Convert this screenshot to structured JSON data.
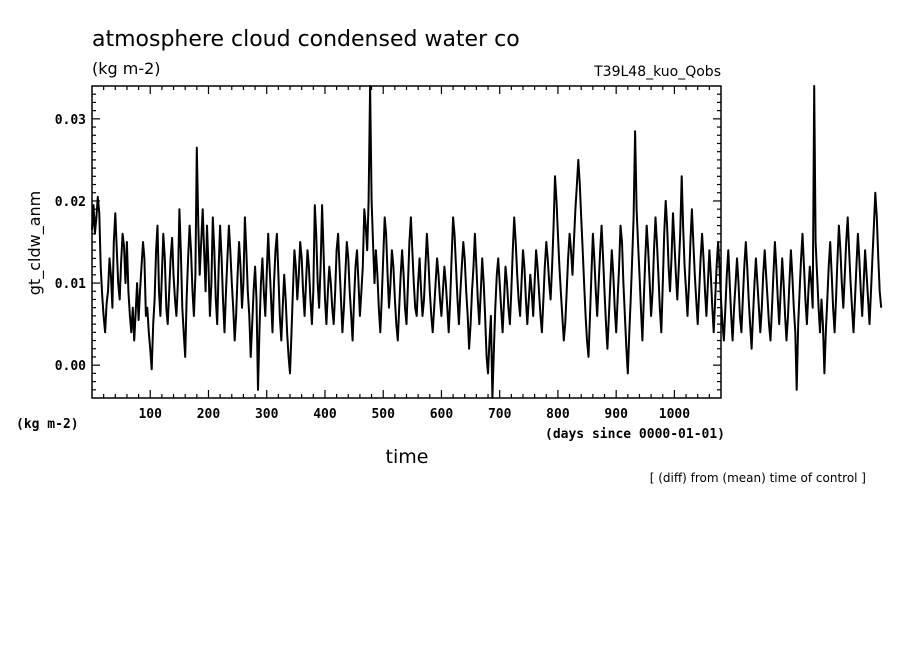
{
  "chart_data": {
    "type": "line",
    "title": "atmosphere cloud condensed water co",
    "units_top": "(kg m-2)",
    "experiment": "T39L48_kuo_Qobs",
    "ylabel": "gt_cldw_anm",
    "y_units": "(kg m-2)",
    "xlabel": "time",
    "x_units": "(days since 0000-01-01)",
    "footnote": "[ (diff) from (mean) time of control ]",
    "xlim": [
      0,
      1080
    ],
    "ylim": [
      -0.004,
      0.034
    ],
    "x_ticks": [
      100,
      200,
      300,
      400,
      500,
      600,
      700,
      800,
      900,
      1000
    ],
    "x_tick_labels": [
      "100",
      "200",
      "300",
      "400",
      "500",
      "600",
      "700",
      "800",
      "900",
      "1000"
    ],
    "y_ticks": [
      0.0,
      0.01,
      0.02,
      0.03
    ],
    "y_tick_labels": [
      "0.00",
      "0.01",
      "0.02",
      "0.03"
    ],
    "grid": false,
    "series": [
      {
        "x_start": 0,
        "x_step": 2.5,
        "values": [
          0.0165,
          0.0195,
          0.016,
          0.018,
          0.0205,
          0.0185,
          0.012,
          0.0085,
          0.006,
          0.004,
          0.0075,
          0.009,
          0.013,
          0.011,
          0.007,
          0.015,
          0.0185,
          0.014,
          0.01,
          0.008,
          0.0125,
          0.016,
          0.0145,
          0.01,
          0.015,
          0.009,
          0.006,
          0.004,
          0.007,
          0.003,
          0.0065,
          0.01,
          0.0055,
          0.009,
          0.012,
          0.015,
          0.013,
          0.006,
          0.007,
          0.004,
          0.002,
          -0.0005,
          0.005,
          0.008,
          0.014,
          0.017,
          0.009,
          0.006,
          0.011,
          0.016,
          0.013,
          0.007,
          0.005,
          0.009,
          0.013,
          0.0155,
          0.011,
          0.008,
          0.006,
          0.01,
          0.019,
          0.014,
          0.007,
          0.004,
          0.001,
          0.008,
          0.013,
          0.017,
          0.014,
          0.009,
          0.006,
          0.011,
          0.0265,
          0.017,
          0.011,
          0.015,
          0.019,
          0.014,
          0.009,
          0.017,
          0.012,
          0.006,
          0.01,
          0.018,
          0.014,
          0.008,
          0.005,
          0.012,
          0.017,
          0.013,
          0.008,
          0.004,
          0.009,
          0.013,
          0.017,
          0.014,
          0.01,
          0.007,
          0.003,
          0.006,
          0.011,
          0.015,
          0.012,
          0.007,
          0.01,
          0.018,
          0.014,
          0.009,
          0.006,
          0.001,
          0.005,
          0.009,
          0.012,
          0.008,
          -0.003,
          0.004,
          0.01,
          0.013,
          0.009,
          0.006,
          0.011,
          0.016,
          0.012,
          0.008,
          0.004,
          0.01,
          0.014,
          0.016,
          0.011,
          0.006,
          0.003,
          0.007,
          0.011,
          0.008,
          0.004,
          0.001,
          -0.001,
          0.004,
          0.009,
          0.014,
          0.012,
          0.008,
          0.011,
          0.015,
          0.013,
          0.009,
          0.006,
          0.01,
          0.014,
          0.012,
          0.008,
          0.005,
          0.009,
          0.0195,
          0.016,
          0.01,
          0.007,
          0.012,
          0.0195,
          0.014,
          0.008,
          0.005,
          0.009,
          0.012,
          0.01,
          0.007,
          0.005,
          0.009,
          0.014,
          0.016,
          0.012,
          0.008,
          0.004,
          0.007,
          0.011,
          0.015,
          0.013,
          0.009,
          0.006,
          0.003,
          0.008,
          0.012,
          0.014,
          0.01,
          0.006,
          0.009,
          0.012,
          0.019,
          0.017,
          0.014,
          0.02,
          0.0345,
          0.02,
          0.015,
          0.01,
          0.014,
          0.011,
          0.007,
          0.004,
          0.008,
          0.013,
          0.018,
          0.016,
          0.011,
          0.007,
          0.01,
          0.014,
          0.012,
          0.008,
          0.005,
          0.003,
          0.007,
          0.011,
          0.014,
          0.011,
          0.007,
          0.005,
          0.01,
          0.015,
          0.018,
          0.014,
          0.01,
          0.007,
          0.006,
          0.01,
          0.013,
          0.009,
          0.006,
          0.008,
          0.012,
          0.016,
          0.013,
          0.009,
          0.006,
          0.004,
          0.007,
          0.01,
          0.013,
          0.011,
          0.008,
          0.006,
          0.009,
          0.012,
          0.01,
          0.007,
          0.004,
          0.008,
          0.013,
          0.018,
          0.016,
          0.012,
          0.008,
          0.005,
          0.009,
          0.012,
          0.015,
          0.013,
          0.009,
          0.006,
          0.002,
          0.005,
          0.009,
          0.012,
          0.016,
          0.012,
          0.008,
          0.005,
          0.009,
          0.013,
          0.01,
          0.006,
          0.001,
          -0.001,
          0.003,
          0.006,
          -0.004,
          0.002,
          0.007,
          0.011,
          0.013,
          0.01,
          0.007,
          0.004,
          0.008,
          0.012,
          0.01,
          0.007,
          0.005,
          0.009,
          0.014,
          0.018,
          0.015,
          0.011,
          0.008,
          0.006,
          0.01,
          0.014,
          0.012,
          0.008,
          0.005,
          0.008,
          0.011,
          0.009,
          0.006,
          0.01,
          0.014,
          0.012,
          0.009,
          0.006,
          0.004,
          0.008,
          0.012,
          0.015,
          0.013,
          0.01,
          0.008,
          0.012,
          0.017,
          0.023,
          0.02,
          0.016,
          0.012,
          0.009,
          0.006,
          0.003,
          0.005,
          0.009,
          0.013,
          0.016,
          0.014,
          0.011,
          0.015,
          0.019,
          0.022,
          0.025,
          0.022,
          0.018,
          0.014,
          0.01,
          0.006,
          0.003,
          0.001,
          0.006,
          0.011,
          0.016,
          0.013,
          0.009,
          0.006,
          0.01,
          0.014,
          0.017,
          0.013,
          0.009,
          0.005,
          0.002,
          0.006,
          0.01,
          0.014,
          0.011,
          0.007,
          0.004,
          0.008,
          0.012,
          0.017,
          0.015,
          0.01,
          0.006,
          0.002,
          -0.001,
          0.004,
          0.008,
          0.013,
          0.018,
          0.0285,
          0.019,
          0.015,
          0.011,
          0.007,
          0.003,
          0.008,
          0.013,
          0.017,
          0.014,
          0.01,
          0.006,
          0.009,
          0.014,
          0.018,
          0.015,
          0.011,
          0.007,
          0.004,
          0.01,
          0.016,
          0.02,
          0.017,
          0.012,
          0.009,
          0.013,
          0.0185,
          0.015,
          0.011,
          0.008,
          0.012,
          0.016,
          0.023,
          0.017,
          0.012,
          0.009,
          0.006,
          0.01,
          0.015,
          0.019,
          0.015,
          0.011,
          0.008,
          0.005,
          0.009,
          0.013,
          0.016,
          0.013,
          0.009,
          0.006,
          0.01,
          0.014,
          0.011,
          0.007,
          0.004,
          0.008,
          0.012,
          0.015,
          0.012,
          0.008,
          0.005,
          0.003,
          0.007,
          0.011,
          0.014,
          0.01,
          0.006,
          0.003,
          0.007,
          0.01,
          0.013,
          0.01,
          0.006,
          0.004,
          0.008,
          0.012,
          0.015,
          0.012,
          0.008,
          0.005,
          0.002,
          0.006,
          0.01,
          0.013,
          0.01,
          0.007,
          0.004,
          0.007,
          0.011,
          0.014,
          0.011,
          0.008,
          0.005,
          0.003,
          0.007,
          0.011,
          0.015,
          0.012,
          0.008,
          0.005,
          0.009,
          0.013,
          0.01,
          0.006,
          0.003,
          0.006,
          0.01,
          0.014,
          0.011,
          0.007,
          0.004,
          -0.003,
          0.005,
          0.009,
          0.013,
          0.016,
          0.012,
          0.008,
          0.005,
          0.009,
          0.012,
          0.01,
          0.007,
          0.034,
          0.015,
          0.011,
          0.007,
          0.004,
          0.008,
          0.005,
          -0.001,
          0.004,
          0.008,
          0.012,
          0.015,
          0.011,
          0.007,
          0.004,
          0.008,
          0.013,
          0.017,
          0.014,
          0.01,
          0.007,
          0.011,
          0.015,
          0.018,
          0.014,
          0.01,
          0.007,
          0.004,
          0.008,
          0.012,
          0.016,
          0.013,
          0.009,
          0.006,
          0.01,
          0.014,
          0.011,
          0.008,
          0.005,
          0.009,
          0.013,
          0.017,
          0.021,
          0.018,
          0.013,
          0.009,
          0.007
        ]
      }
    ]
  }
}
